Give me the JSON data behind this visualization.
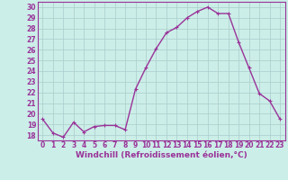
{
  "x": [
    0,
    1,
    2,
    3,
    4,
    5,
    6,
    7,
    8,
    9,
    10,
    11,
    12,
    13,
    14,
    15,
    16,
    17,
    18,
    19,
    20,
    21,
    22,
    23
  ],
  "y": [
    19.5,
    18.2,
    17.8,
    19.2,
    18.3,
    18.8,
    18.9,
    18.9,
    18.5,
    22.3,
    24.3,
    26.1,
    27.6,
    28.1,
    29.0,
    29.6,
    30.0,
    29.4,
    29.4,
    26.7,
    24.3,
    21.9,
    21.2,
    19.5
  ],
  "line_color": "#993399",
  "marker": "+",
  "marker_size": 3,
  "bg_color": "#cceee8",
  "grid_color": "#aacccc",
  "xlabel": "Windchill (Refroidissement éolien,°C)",
  "ylim": [
    17.5,
    30.5
  ],
  "xlim": [
    -0.5,
    23.5
  ],
  "yticks": [
    18,
    19,
    20,
    21,
    22,
    23,
    24,
    25,
    26,
    27,
    28,
    29,
    30
  ],
  "xticks": [
    0,
    1,
    2,
    3,
    4,
    5,
    6,
    7,
    8,
    9,
    10,
    11,
    12,
    13,
    14,
    15,
    16,
    17,
    18,
    19,
    20,
    21,
    22,
    23
  ],
  "tick_fontsize": 5.5,
  "xlabel_fontsize": 6.5,
  "line_width": 1.0
}
